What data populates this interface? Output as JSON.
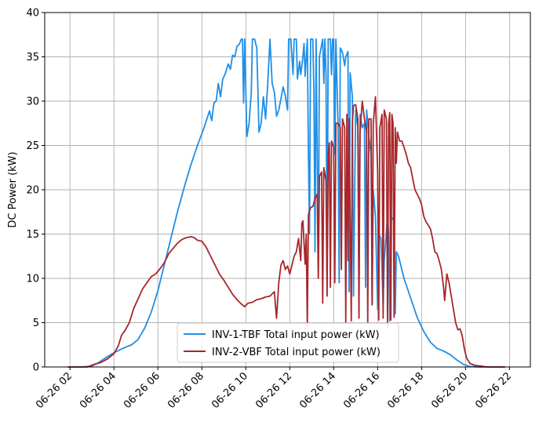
{
  "chart_data": {
    "type": "line",
    "title": "",
    "xlabel": "",
    "ylabel": "DC Power (kW)",
    "ylim": [
      0,
      40
    ],
    "xlim_hours": [
      0.85,
      22.95
    ],
    "x_ticks": [
      {
        "hour": 2,
        "label": "06-26 02"
      },
      {
        "hour": 4,
        "label": "06-26 04"
      },
      {
        "hour": 6,
        "label": "06-26 06"
      },
      {
        "hour": 8,
        "label": "06-26 08"
      },
      {
        "hour": 10,
        "label": "06-26 10"
      },
      {
        "hour": 12,
        "label": "06-26 12"
      },
      {
        "hour": 14,
        "label": "06-26 14"
      },
      {
        "hour": 16,
        "label": "06-26 16"
      },
      {
        "hour": 18,
        "label": "06-26 18"
      },
      {
        "hour": 20,
        "label": "06-26 20"
      },
      {
        "hour": 22,
        "label": "06-26 22"
      }
    ],
    "y_ticks": [
      0,
      5,
      10,
      15,
      20,
      25,
      30,
      35,
      40
    ],
    "grid": true,
    "legend_position": "lower-center",
    "series": [
      {
        "name": "INV-1-TBF Total input power (kW)",
        "color": "#1f8fe6",
        "points": [
          [
            1.9,
            0
          ],
          [
            2.5,
            0
          ],
          [
            3.0,
            0.1
          ],
          [
            3.3,
            0.5
          ],
          [
            3.6,
            1.0
          ],
          [
            4.0,
            1.6
          ],
          [
            4.4,
            2.1
          ],
          [
            4.8,
            2.5
          ],
          [
            5.1,
            3.1
          ],
          [
            5.4,
            4.4
          ],
          [
            5.7,
            6.2
          ],
          [
            6.0,
            8.6
          ],
          [
            6.3,
            11.6
          ],
          [
            6.6,
            14.6
          ],
          [
            6.9,
            17.6
          ],
          [
            7.2,
            20.3
          ],
          [
            7.5,
            22.8
          ],
          [
            7.8,
            25.0
          ],
          [
            8.1,
            27.0
          ],
          [
            8.35,
            28.9
          ],
          [
            8.45,
            27.8
          ],
          [
            8.55,
            29.8
          ],
          [
            8.65,
            30.0
          ],
          [
            8.75,
            32.0
          ],
          [
            8.85,
            30.5
          ],
          [
            8.95,
            32.5
          ],
          [
            9.05,
            33.0
          ],
          [
            9.2,
            34.2
          ],
          [
            9.3,
            33.6
          ],
          [
            9.4,
            35.2
          ],
          [
            9.5,
            35.0
          ],
          [
            9.6,
            36.2
          ],
          [
            9.7,
            36.4
          ],
          [
            9.8,
            37.0
          ],
          [
            9.85,
            37.0
          ],
          [
            9.9,
            29.8
          ],
          [
            9.95,
            37.0
          ],
          [
            10.05,
            26.0
          ],
          [
            10.15,
            27.5
          ],
          [
            10.25,
            31.0
          ],
          [
            10.3,
            37.0
          ],
          [
            10.4,
            37.0
          ],
          [
            10.5,
            36.0
          ],
          [
            10.6,
            26.5
          ],
          [
            10.7,
            27.5
          ],
          [
            10.8,
            30.5
          ],
          [
            10.9,
            28.0
          ],
          [
            11.0,
            32.0
          ],
          [
            11.1,
            37.0
          ],
          [
            11.2,
            32.0
          ],
          [
            11.3,
            31.0
          ],
          [
            11.4,
            28.3
          ],
          [
            11.5,
            29.0
          ],
          [
            11.6,
            30.3
          ],
          [
            11.7,
            31.6
          ],
          [
            11.8,
            30.6
          ],
          [
            11.9,
            29.0
          ],
          [
            11.95,
            37.0
          ],
          [
            12.05,
            37.0
          ],
          [
            12.15,
            33.0
          ],
          [
            12.2,
            37.0
          ],
          [
            12.3,
            37.0
          ],
          [
            12.35,
            32.5
          ],
          [
            12.45,
            34.5
          ],
          [
            12.5,
            33.0
          ],
          [
            12.6,
            35.0
          ],
          [
            12.65,
            36.5
          ],
          [
            12.7,
            32.8
          ],
          [
            12.8,
            37.0
          ],
          [
            12.85,
            24.0
          ],
          [
            12.9,
            15.0
          ],
          [
            12.95,
            37.0
          ],
          [
            13.05,
            37.0
          ],
          [
            13.1,
            31.0
          ],
          [
            13.15,
            13.0
          ],
          [
            13.2,
            37.0
          ],
          [
            13.3,
            10.8
          ],
          [
            13.35,
            35.0
          ],
          [
            13.5,
            37.0
          ],
          [
            13.55,
            32.0
          ],
          [
            13.6,
            37.0
          ],
          [
            13.65,
            33.0
          ],
          [
            13.7,
            9.5
          ],
          [
            13.75,
            37.0
          ],
          [
            13.85,
            37.0
          ],
          [
            13.9,
            33.0
          ],
          [
            13.95,
            37.0
          ],
          [
            14.0,
            37.0
          ],
          [
            14.05,
            24.0
          ],
          [
            14.1,
            37.0
          ],
          [
            14.2,
            27.0
          ],
          [
            14.25,
            9.5
          ],
          [
            14.3,
            36.0
          ],
          [
            14.4,
            35.5
          ],
          [
            14.5,
            34.0
          ],
          [
            14.55,
            35.0
          ],
          [
            14.65,
            35.6
          ],
          [
            14.7,
            8.5
          ],
          [
            14.75,
            33.2
          ],
          [
            14.85,
            30.5
          ],
          [
            14.9,
            8.0
          ],
          [
            15.0,
            29.0
          ],
          [
            15.1,
            27.0
          ],
          [
            15.15,
            9.0
          ],
          [
            15.2,
            28.5
          ],
          [
            15.3,
            27.0
          ],
          [
            15.4,
            27.5
          ],
          [
            15.45,
            9.0
          ],
          [
            15.5,
            29.0
          ],
          [
            15.6,
            26.0
          ],
          [
            15.7,
            24.0
          ],
          [
            15.75,
            7.0
          ],
          [
            15.8,
            20.0
          ],
          [
            15.9,
            17.0
          ],
          [
            16.0,
            6.5
          ],
          [
            16.05,
            15.0
          ],
          [
            16.15,
            14.5
          ],
          [
            16.25,
            7.0
          ],
          [
            16.3,
            12.0
          ],
          [
            16.45,
            17.0
          ],
          [
            16.5,
            15.0
          ],
          [
            16.55,
            5.2
          ],
          [
            16.6,
            17.0
          ],
          [
            16.75,
            16.5
          ],
          [
            16.8,
            6.0
          ],
          [
            16.85,
            13.0
          ],
          [
            16.95,
            12.5
          ],
          [
            17.2,
            10.0
          ],
          [
            17.5,
            7.8
          ],
          [
            17.8,
            5.6
          ],
          [
            18.1,
            4.0
          ],
          [
            18.4,
            2.8
          ],
          [
            18.7,
            2.1
          ],
          [
            19.0,
            1.8
          ],
          [
            19.3,
            1.4
          ],
          [
            19.6,
            0.8
          ],
          [
            19.9,
            0.3
          ],
          [
            20.2,
            0.05
          ],
          [
            20.6,
            0
          ],
          [
            21.3,
            0
          ],
          [
            21.8,
            0
          ]
        ]
      },
      {
        "name": "INV-2-VBF Total input power (kW)",
        "color": "#a8262a",
        "points": [
          [
            1.9,
            0
          ],
          [
            2.4,
            0
          ],
          [
            2.8,
            0
          ],
          [
            3.1,
            0.3
          ],
          [
            3.4,
            0.5
          ],
          [
            3.7,
            0.9
          ],
          [
            4.0,
            1.5
          ],
          [
            4.2,
            2.4
          ],
          [
            4.35,
            3.6
          ],
          [
            4.5,
            4.1
          ],
          [
            4.7,
            5.0
          ],
          [
            4.9,
            6.6
          ],
          [
            5.1,
            7.7
          ],
          [
            5.3,
            8.8
          ],
          [
            5.5,
            9.5
          ],
          [
            5.7,
            10.2
          ],
          [
            5.9,
            10.5
          ],
          [
            6.1,
            11.1
          ],
          [
            6.3,
            11.8
          ],
          [
            6.5,
            12.8
          ],
          [
            6.7,
            13.4
          ],
          [
            6.9,
            14.0
          ],
          [
            7.1,
            14.4
          ],
          [
            7.3,
            14.6
          ],
          [
            7.5,
            14.7
          ],
          [
            7.65,
            14.6
          ],
          [
            7.8,
            14.3
          ],
          [
            8.0,
            14.2
          ],
          [
            8.2,
            13.5
          ],
          [
            8.4,
            12.5
          ],
          [
            8.6,
            11.5
          ],
          [
            8.8,
            10.5
          ],
          [
            9.0,
            9.8
          ],
          [
            9.2,
            9.0
          ],
          [
            9.4,
            8.2
          ],
          [
            9.6,
            7.6
          ],
          [
            9.8,
            7.1
          ],
          [
            9.95,
            6.8
          ],
          [
            10.1,
            7.2
          ],
          [
            10.3,
            7.3
          ],
          [
            10.5,
            7.6
          ],
          [
            10.7,
            7.7
          ],
          [
            10.9,
            7.9
          ],
          [
            11.1,
            8.0
          ],
          [
            11.3,
            8.5
          ],
          [
            11.4,
            5.5
          ],
          [
            11.5,
            9.5
          ],
          [
            11.6,
            11.5
          ],
          [
            11.7,
            12.0
          ],
          [
            11.8,
            11.0
          ],
          [
            11.9,
            11.4
          ],
          [
            12.0,
            10.5
          ],
          [
            12.1,
            11.5
          ],
          [
            12.2,
            12.5
          ],
          [
            12.3,
            13.0
          ],
          [
            12.4,
            14.5
          ],
          [
            12.5,
            12.0
          ],
          [
            12.55,
            16.2
          ],
          [
            12.6,
            16.5
          ],
          [
            12.65,
            14.0
          ],
          [
            12.7,
            11.6
          ],
          [
            12.75,
            15.0
          ],
          [
            12.8,
            4.6
          ],
          [
            12.85,
            17.2
          ],
          [
            12.95,
            18.0
          ],
          [
            13.05,
            18.1
          ],
          [
            13.15,
            19.0
          ],
          [
            13.25,
            19.5
          ],
          [
            13.3,
            10.0
          ],
          [
            13.35,
            21.5
          ],
          [
            13.45,
            22.0
          ],
          [
            13.5,
            7.2
          ],
          [
            13.55,
            22.5
          ],
          [
            13.65,
            21.0
          ],
          [
            13.7,
            8.0
          ],
          [
            13.75,
            24.0
          ],
          [
            13.8,
            25.3
          ],
          [
            13.85,
            9.0
          ],
          [
            13.9,
            25.5
          ],
          [
            14.0,
            24.8
          ],
          [
            14.05,
            9.5
          ],
          [
            14.1,
            27.5
          ],
          [
            14.2,
            27.5
          ],
          [
            14.3,
            27.0
          ],
          [
            14.35,
            11.0
          ],
          [
            14.4,
            28.0
          ],
          [
            14.5,
            27.0
          ],
          [
            14.55,
            5.0
          ],
          [
            14.6,
            28.5
          ],
          [
            14.65,
            12.0
          ],
          [
            14.7,
            28.0
          ],
          [
            14.8,
            5.2
          ],
          [
            14.85,
            27.5
          ],
          [
            14.9,
            29.5
          ],
          [
            15.0,
            29.6
          ],
          [
            15.1,
            28.0
          ],
          [
            15.15,
            5.5
          ],
          [
            15.2,
            26.5
          ],
          [
            15.3,
            30.0
          ],
          [
            15.4,
            28.0
          ],
          [
            15.5,
            26.5
          ],
          [
            15.55,
            5.0
          ],
          [
            15.6,
            28.0
          ],
          [
            15.7,
            28.0
          ],
          [
            15.75,
            7.0
          ],
          [
            15.8,
            27.5
          ],
          [
            15.9,
            30.5
          ],
          [
            16.0,
            22.0
          ],
          [
            16.05,
            5.3
          ],
          [
            16.1,
            27.0
          ],
          [
            16.2,
            28.5
          ],
          [
            16.25,
            5.5
          ],
          [
            16.3,
            29.0
          ],
          [
            16.4,
            28.0
          ],
          [
            16.45,
            4.5
          ],
          [
            16.5,
            27.5
          ],
          [
            16.55,
            28.7
          ],
          [
            16.6,
            5.3
          ],
          [
            16.65,
            28.5
          ],
          [
            16.7,
            27.5
          ],
          [
            16.75,
            5.6
          ],
          [
            16.8,
            27.0
          ],
          [
            16.85,
            23.0
          ],
          [
            16.9,
            26.5
          ],
          [
            17.0,
            25.5
          ],
          [
            17.1,
            25.5
          ],
          [
            17.2,
            24.8
          ],
          [
            17.3,
            24.0
          ],
          [
            17.4,
            23.0
          ],
          [
            17.5,
            22.5
          ],
          [
            17.6,
            21.2
          ],
          [
            17.7,
            20.0
          ],
          [
            17.8,
            19.5
          ],
          [
            17.9,
            19.0
          ],
          [
            18.0,
            18.3
          ],
          [
            18.1,
            17.0
          ],
          [
            18.2,
            16.4
          ],
          [
            18.3,
            16.0
          ],
          [
            18.4,
            15.6
          ],
          [
            18.5,
            14.5
          ],
          [
            18.6,
            13.0
          ],
          [
            18.7,
            12.8
          ],
          [
            18.8,
            12.0
          ],
          [
            18.9,
            11.0
          ],
          [
            19.0,
            9.0
          ],
          [
            19.05,
            7.5
          ],
          [
            19.15,
            10.5
          ],
          [
            19.25,
            9.5
          ],
          [
            19.35,
            8.0
          ],
          [
            19.45,
            6.5
          ],
          [
            19.55,
            5.0
          ],
          [
            19.65,
            4.2
          ],
          [
            19.75,
            4.3
          ],
          [
            19.85,
            3.5
          ],
          [
            19.95,
            2.0
          ],
          [
            20.05,
            1.0
          ],
          [
            20.2,
            0.4
          ],
          [
            20.4,
            0.2
          ],
          [
            20.7,
            0.1
          ],
          [
            21.0,
            0
          ],
          [
            21.5,
            0
          ],
          [
            21.8,
            0
          ]
        ]
      }
    ]
  }
}
